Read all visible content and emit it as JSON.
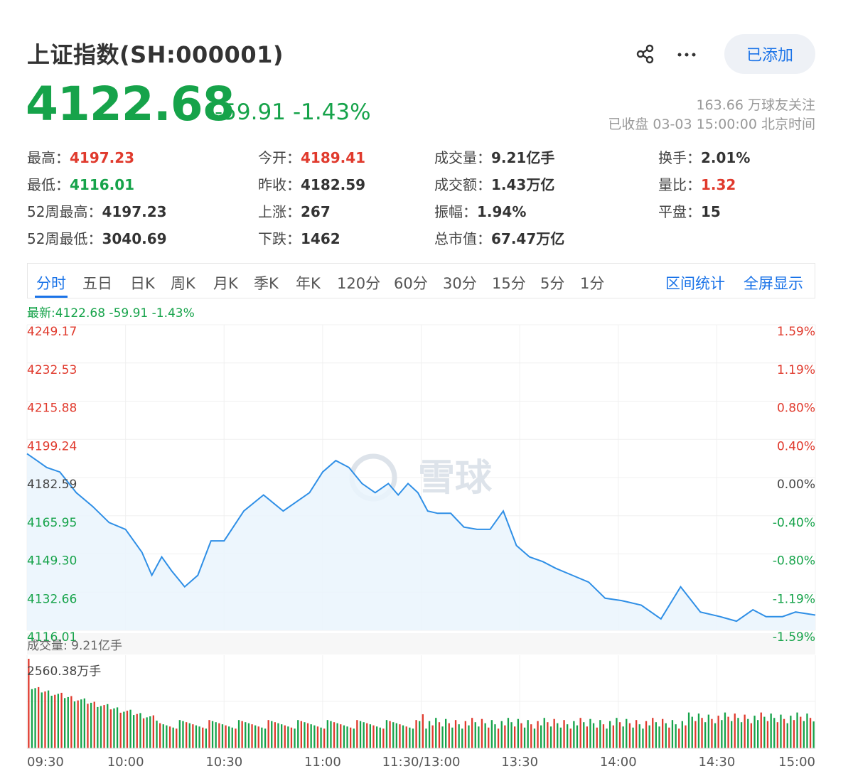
{
  "header": {
    "title": "上证指数(SH:000001)",
    "added_label": "已添加",
    "price": "4122.68",
    "change": "-59.91",
    "change_pct": "-1.43%",
    "followers": "163.66 万球友关注",
    "status": "已收盘 03-03 15:00:00 北京时间"
  },
  "stats": [
    {
      "label": "最高：",
      "value": "4197.23",
      "color": "red"
    },
    {
      "label": "今开：",
      "value": "4189.41",
      "color": "red"
    },
    {
      "label": "成交量：",
      "value": "9.21亿手",
      "color": ""
    },
    {
      "label": "换手：",
      "value": "2.01%",
      "color": ""
    },
    {
      "label": "最低：",
      "value": "4116.01",
      "color": "green"
    },
    {
      "label": "昨收：",
      "value": "4182.59",
      "color": ""
    },
    {
      "label": "成交额：",
      "value": "1.43万亿",
      "color": ""
    },
    {
      "label": "量比：",
      "value": "1.32",
      "color": "red"
    },
    {
      "label": "52周最高：",
      "value": "4197.23",
      "color": ""
    },
    {
      "label": "上涨：",
      "value": "267",
      "color": ""
    },
    {
      "label": "振幅：",
      "value": "1.94%",
      "color": ""
    },
    {
      "label": "平盘：",
      "value": "15",
      "color": ""
    },
    {
      "label": "52周最低：",
      "value": "3040.69",
      "color": ""
    },
    {
      "label": "下跌：",
      "value": "1462",
      "color": ""
    },
    {
      "label": "总市值：",
      "value": "67.47万亿",
      "color": ""
    }
  ],
  "tabs": [
    "分时",
    "五日",
    "日K",
    "周K",
    "月K",
    "季K",
    "年K",
    "120分",
    "60分",
    "30分",
    "15分",
    "5分",
    "1分"
  ],
  "tab_links": [
    "区间统计",
    "全屏显示"
  ],
  "latest_line": "最新:4122.68 -59.91 -1.43%",
  "volume_label": "成交量: 9.21亿手",
  "volume_max_label": "2560.38万手",
  "watermark": "雪球",
  "colors": {
    "up": "#e03a2d",
    "down": "#16a34a",
    "line": "#2f8fe6",
    "accent": "#1a73e8"
  },
  "chart_data": {
    "type": "line",
    "prev_close": 4182.59,
    "ylim": [
      4116.01,
      4249.17
    ],
    "y_ticks_left": [
      "4249.17",
      "4232.53",
      "4215.88",
      "4199.24",
      "4182.59",
      "4165.95",
      "4149.30",
      "4132.66",
      "4116.01"
    ],
    "y_ticks_right": [
      "1.59%",
      "1.19%",
      "0.80%",
      "0.40%",
      "0.00%",
      "-0.40%",
      "-0.80%",
      "-1.19%",
      "-1.59%"
    ],
    "x_ticks": [
      "09:30",
      "10:00",
      "10:30",
      "11:00",
      "11:30/13:00",
      "13:30",
      "14:00",
      "14:30",
      "15:00"
    ],
    "x_minutes": [
      0,
      3,
      6,
      10,
      15,
      20,
      25,
      30,
      35,
      38,
      41,
      44,
      48,
      52,
      56,
      60,
      66,
      72,
      78,
      82,
      86,
      90,
      94,
      98,
      102,
      106,
      110,
      113,
      116,
      119,
      122,
      125,
      129,
      133,
      137,
      141,
      145,
      149,
      153,
      157,
      161,
      166,
      171,
      176,
      181,
      187,
      193,
      199,
      205,
      211,
      216,
      221,
      225,
      230,
      234,
      240
    ],
    "price": [
      4193,
      4190,
      4187,
      4185,
      4176,
      4170,
      4163,
      4160,
      4150,
      4140,
      4148,
      4142,
      4135,
      4140,
      4155,
      4155,
      4168,
      4175,
      4168,
      4172,
      4176,
      4185,
      4190,
      4187,
      4180,
      4176,
      4180,
      4175,
      4180,
      4176,
      4168,
      4167,
      4167,
      4161,
      4160,
      4160,
      4168,
      4153,
      4148,
      4146,
      4143,
      4140,
      4137,
      4130,
      4129,
      4127,
      4121,
      4135,
      4124,
      4122,
      4120,
      4125,
      4122,
      4122,
      4124,
      4122.68
    ],
    "volume_max": 2560.38,
    "volume_unit": "万手"
  }
}
